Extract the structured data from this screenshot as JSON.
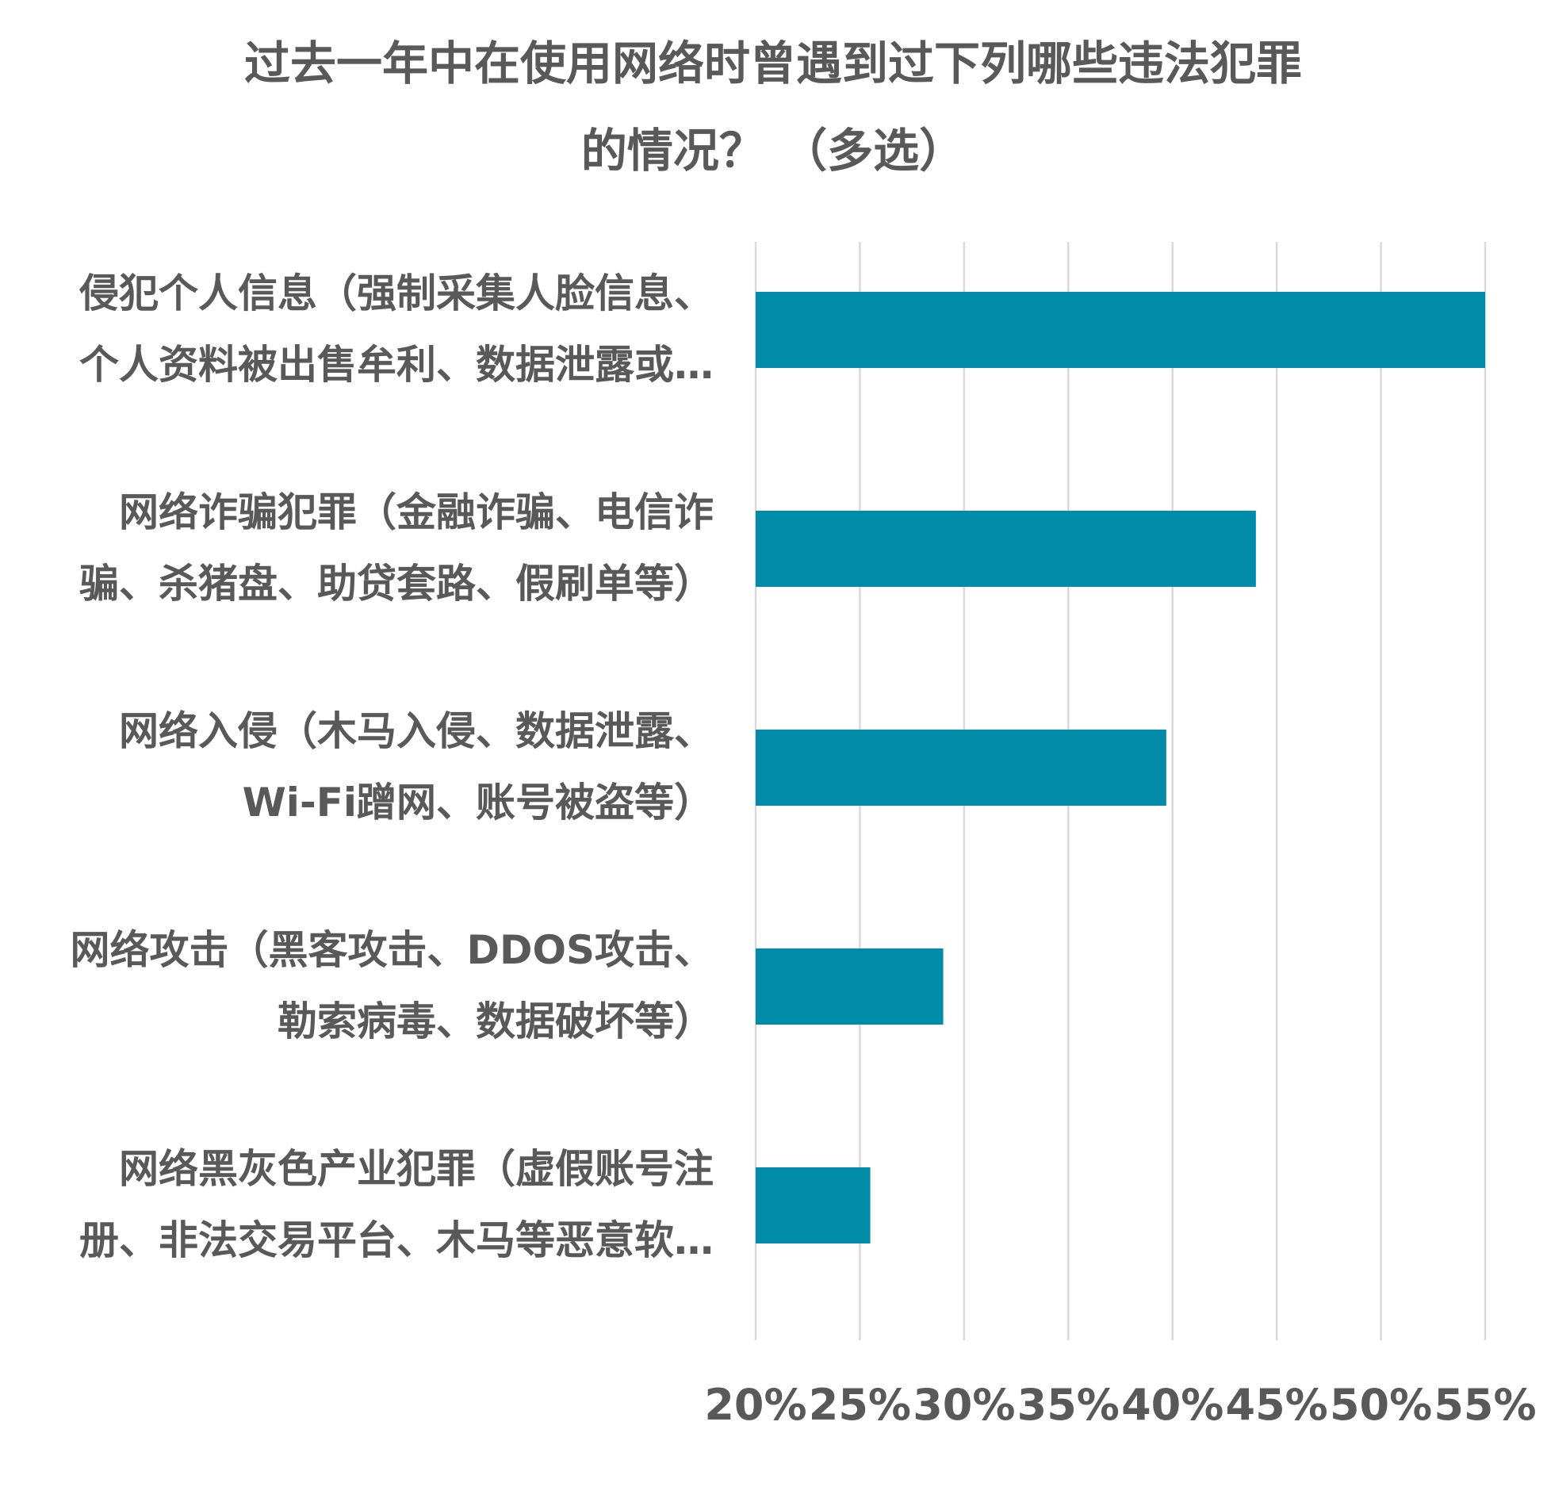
{
  "chart_data": {
    "type": "bar",
    "orientation": "horizontal",
    "title_lines": [
      "过去一年中在使用网络时曾遇到过下列哪些违法犯罪",
      "的情况？ （多选）"
    ],
    "categories": [
      [
        "侵犯个人信息（强制采集人脸信息、",
        "个人资料被出售牟利、数据泄露或…"
      ],
      [
        "网络诈骗犯罪（金融诈骗、电信诈",
        "骗、杀猪盘、助贷套路、假刷单等）"
      ],
      [
        "网络入侵（木马入侵、数据泄露、",
        "Wi-Fi蹭网、账号被盗等）"
      ],
      [
        "网络攻击（黑客攻击、DDOS攻击、",
        "勒索病毒、数据破坏等）"
      ],
      [
        "网络黑灰色产业犯罪（虚假账号注",
        "册、非法交易平台、木马等恶意软…"
      ]
    ],
    "values": [
      55,
      44,
      39.7,
      29,
      25.5
    ],
    "xlim": [
      20,
      55
    ],
    "xticks": [
      20,
      25,
      30,
      35,
      40,
      45,
      50,
      55
    ],
    "xtick_labels": [
      "20%",
      "25%",
      "30%",
      "35%",
      "40%",
      "45%",
      "50%",
      "55%"
    ],
    "grid": true,
    "legend": "none",
    "bar_color": "#008BA8",
    "xlabel": "",
    "ylabel": ""
  }
}
